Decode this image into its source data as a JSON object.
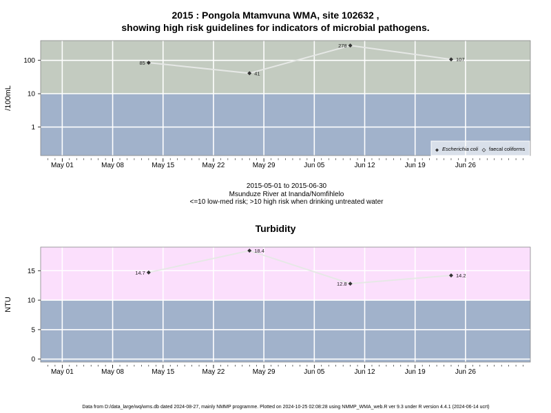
{
  "microbial_chart": {
    "title_line1": "2015 : Pongola Mtamvuna WMA, site 102632 ,",
    "title_line2": "showing high risk guidelines for indicators of microbial pathogens.",
    "caption_date_range": "2015-05-01 to 2015-06-30",
    "caption_site": "Msunduze River at Inanda/Nomfihlelo",
    "caption_guideline": "<=10 low-med risk; >10 high risk when drinking untreated water",
    "legend_item_1": "Escherichia coli",
    "legend_item_2": "faecal coliforms"
  },
  "turbidity_chart": {
    "title": "Turbidity"
  },
  "footer": {
    "text": "Data from D:/data_large/wq/wms.db dated 2024-08-27, mainly NMMP programme. Plotted on 2024-10-25 02:08:28 using NMMP_WMA_web.R ver 9.3 under R version 4.4.1 (2024-06-14 ucrt)"
  },
  "colors": {
    "high_risk_microbial": "#c3cbc0",
    "low_risk": "#a1b2cb",
    "high_risk_turbidity": "#fbdffc",
    "grid": "#ffffff",
    "series_line": "#e6e8e6",
    "marker": "#333333"
  },
  "chart_data": [
    {
      "type": "line",
      "name": "microbial",
      "ylabel": "/100mL",
      "yscale": "log",
      "y_ticks": [
        1,
        10,
        100
      ],
      "y_tick_labels": [
        "1",
        "10",
        "100"
      ],
      "threshold": 10,
      "x_tick_labels": [
        "May 01",
        "May 08",
        "May 15",
        "May 22",
        "May 29",
        "Jun 05",
        "Jun 12",
        "Jun 19",
        "Jun 26"
      ],
      "x_tick_dates": [
        "2015-05-01",
        "2015-05-08",
        "2015-05-15",
        "2015-05-22",
        "2015-05-29",
        "2015-06-05",
        "2015-06-12",
        "2015-06-19",
        "2015-06-26"
      ],
      "xlim": [
        "2015-04-28",
        "2015-07-05"
      ],
      "legend_position": "bottom-right",
      "series": [
        {
          "name": "Escherichia coli",
          "x": [
            "2015-05-13",
            "2015-05-27",
            "2015-06-10",
            "2015-06-24"
          ],
          "values": [
            85,
            41,
            278,
            107
          ],
          "labels": [
            "85",
            "41",
            "278",
            "107"
          ]
        }
      ]
    },
    {
      "type": "line",
      "name": "turbidity",
      "title": "Turbidity",
      "ylabel": "NTU",
      "ylim": [
        -0.5,
        19
      ],
      "y_ticks": [
        0,
        5,
        10,
        15
      ],
      "y_tick_labels": [
        "0",
        "5",
        "10",
        "15"
      ],
      "threshold": 10,
      "x_tick_labels": [
        "May 01",
        "May 08",
        "May 15",
        "May 22",
        "May 29",
        "Jun 05",
        "Jun 12",
        "Jun 19",
        "Jun 26"
      ],
      "x_tick_dates": [
        "2015-05-01",
        "2015-05-08",
        "2015-05-15",
        "2015-05-22",
        "2015-05-29",
        "2015-06-05",
        "2015-06-12",
        "2015-06-19",
        "2015-06-26"
      ],
      "xlim": [
        "2015-04-28",
        "2015-07-05"
      ],
      "series": [
        {
          "x": [
            "2015-05-13",
            "2015-05-27",
            "2015-06-10",
            "2015-06-24"
          ],
          "values": [
            14.7,
            18.4,
            12.8,
            14.2
          ],
          "labels": [
            "14.7",
            "18.4",
            "12.8",
            "14.2"
          ]
        }
      ]
    }
  ]
}
